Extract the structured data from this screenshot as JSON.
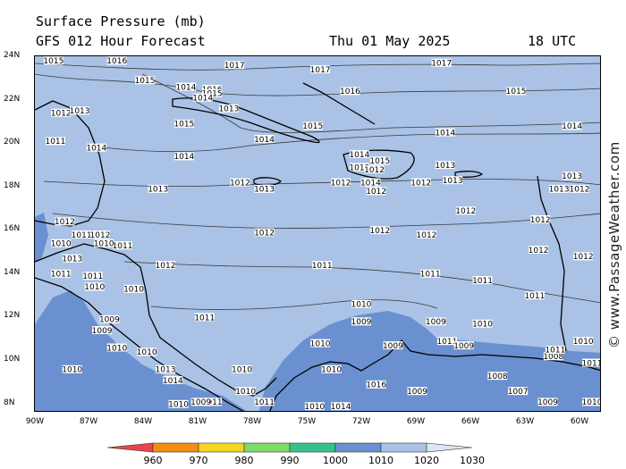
{
  "header": {
    "title": "Surface Pressure (mb)",
    "forecast": "GFS 012 Hour Forecast",
    "date": "Thu 01 May 2025",
    "time": "18 UTC"
  },
  "watermark": "© www.PassageWeather.com",
  "latitude_labels": [
    "24N",
    "22N",
    "20N",
    "18N",
    "16N",
    "14N",
    "12N",
    "10N",
    "8N"
  ],
  "longitude_labels": [
    "90W",
    "87W",
    "84W",
    "81W",
    "78W",
    "75W",
    "72W",
    "69W",
    "66W",
    "63W",
    "60W"
  ],
  "colorbar": {
    "ticks": [
      "960",
      "970",
      "980",
      "990",
      "1000",
      "1010",
      "1020",
      "1030"
    ],
    "colors": [
      "#e8464a",
      "#f28c12",
      "#f5d520",
      "#7ddc6a",
      "#37c28c",
      "#6a90d0",
      "#a9c2e6",
      "#dde6f5"
    ]
  },
  "colors": {
    "high_pressure": "#a9c2e6",
    "low_pressure": "#6a90d0",
    "land_outline": "#000000"
  },
  "isobar_labels": [
    {
      "text": "1015",
      "lon": -89.0,
      "lat": 23.8
    },
    {
      "text": "1016",
      "lon": -85.6,
      "lat": 23.8
    },
    {
      "text": "1017",
      "lon": -79.3,
      "lat": 23.6
    },
    {
      "text": "1017",
      "lon": -74.7,
      "lat": 23.4
    },
    {
      "text": "1017",
      "lon": -68.2,
      "lat": 23.7
    },
    {
      "text": "1015",
      "lon": -84.1,
      "lat": 22.9
    },
    {
      "text": "1014",
      "lon": -81.9,
      "lat": 22.6
    },
    {
      "text": "1016",
      "lon": -80.5,
      "lat": 22.5
    },
    {
      "text": "1015",
      "lon": -80.5,
      "lat": 22.3
    },
    {
      "text": "1014",
      "lon": -81.0,
      "lat": 22.1
    },
    {
      "text": "1016",
      "lon": -73.1,
      "lat": 22.4
    },
    {
      "text": "1015",
      "lon": -64.2,
      "lat": 22.4
    },
    {
      "text": "1013",
      "lon": -79.6,
      "lat": 21.6
    },
    {
      "text": "1012",
      "lon": -88.6,
      "lat": 21.4
    },
    {
      "text": "1013",
      "lon": -87.6,
      "lat": 21.5
    },
    {
      "text": "1015",
      "lon": -82.0,
      "lat": 20.9
    },
    {
      "text": "1015",
      "lon": -75.1,
      "lat": 20.8
    },
    {
      "text": "1014",
      "lon": -68.0,
      "lat": 20.5
    },
    {
      "text": "1014",
      "lon": -61.2,
      "lat": 20.8
    },
    {
      "text": "1011",
      "lon": -88.9,
      "lat": 20.1
    },
    {
      "text": "1014",
      "lon": -86.7,
      "lat": 19.8
    },
    {
      "text": "1014",
      "lon": -77.7,
      "lat": 20.2
    },
    {
      "text": "1014",
      "lon": -72.6,
      "lat": 19.5
    },
    {
      "text": "1015",
      "lon": -71.5,
      "lat": 19.2
    },
    {
      "text": "1014",
      "lon": -82.0,
      "lat": 19.4
    },
    {
      "text": "1013",
      "lon": -72.6,
      "lat": 18.9
    },
    {
      "text": "1012",
      "lon": -71.8,
      "lat": 18.8
    },
    {
      "text": "1013",
      "lon": -68.0,
      "lat": 19.0
    },
    {
      "text": "1012",
      "lon": -79.0,
      "lat": 18.2
    },
    {
      "text": "1013",
      "lon": -77.7,
      "lat": 17.9
    },
    {
      "text": "1013",
      "lon": -83.4,
      "lat": 17.9
    },
    {
      "text": "1012",
      "lon": -73.6,
      "lat": 18.2
    },
    {
      "text": "1014",
      "lon": -72.0,
      "lat": 18.2
    },
    {
      "text": "1012",
      "lon": -71.7,
      "lat": 17.8
    },
    {
      "text": "1012",
      "lon": -69.3,
      "lat": 18.2
    },
    {
      "text": "1013",
      "lon": -67.6,
      "lat": 18.3
    },
    {
      "text": "1013",
      "lon": -61.9,
      "lat": 17.9
    },
    {
      "text": "1012",
      "lon": -60.8,
      "lat": 17.9
    },
    {
      "text": "1013",
      "lon": -61.2,
      "lat": 18.5
    },
    {
      "text": "1012",
      "lon": -66.9,
      "lat": 16.9
    },
    {
      "text": "1012",
      "lon": -62.9,
      "lat": 16.5
    },
    {
      "text": "1012",
      "lon": -88.4,
      "lat": 16.4
    },
    {
      "text": "1012",
      "lon": -77.7,
      "lat": 15.9
    },
    {
      "text": "1012",
      "lon": -71.5,
      "lat": 16.0
    },
    {
      "text": "1012",
      "lon": -69.0,
      "lat": 15.8
    },
    {
      "text": "1012",
      "lon": -63.0,
      "lat": 15.1
    },
    {
      "text": "1012",
      "lon": -60.6,
      "lat": 14.8
    },
    {
      "text": "1011",
      "lon": -87.5,
      "lat": 15.8
    },
    {
      "text": "1012",
      "lon": -86.5,
      "lat": 15.8
    },
    {
      "text": "1011",
      "lon": -85.3,
      "lat": 15.3
    },
    {
      "text": "1010",
      "lon": -88.6,
      "lat": 15.4
    },
    {
      "text": "1010",
      "lon": -86.3,
      "lat": 15.4
    },
    {
      "text": "1013",
      "lon": -88.0,
      "lat": 14.7
    },
    {
      "text": "1012",
      "lon": -83.0,
      "lat": 14.4
    },
    {
      "text": "1011",
      "lon": -74.6,
      "lat": 14.4
    },
    {
      "text": "1011",
      "lon": -68.8,
      "lat": 14.0
    },
    {
      "text": "1011",
      "lon": -66.0,
      "lat": 13.7
    },
    {
      "text": "1011",
      "lon": -63.2,
      "lat": 13.0
    },
    {
      "text": "1011",
      "lon": -88.6,
      "lat": 14.0
    },
    {
      "text": "1011",
      "lon": -86.9,
      "lat": 13.9
    },
    {
      "text": "1010",
      "lon": -86.8,
      "lat": 13.4
    },
    {
      "text": "1010",
      "lon": -84.7,
      "lat": 13.3
    },
    {
      "text": "1010",
      "lon": -72.5,
      "lat": 12.6
    },
    {
      "text": "1011",
      "lon": -80.9,
      "lat": 12.0
    },
    {
      "text": "1009",
      "lon": -86.0,
      "lat": 11.9
    },
    {
      "text": "1009",
      "lon": -86.4,
      "lat": 11.4
    },
    {
      "text": "1010",
      "lon": -85.6,
      "lat": 10.6
    },
    {
      "text": "1010",
      "lon": -84.0,
      "lat": 10.4
    },
    {
      "text": "1010",
      "lon": -74.7,
      "lat": 10.8
    },
    {
      "text": "1009",
      "lon": -72.5,
      "lat": 11.8
    },
    {
      "text": "1009",
      "lon": -68.5,
      "lat": 11.8
    },
    {
      "text": "1010",
      "lon": -66.0,
      "lat": 11.7
    },
    {
      "text": "1010",
      "lon": -60.6,
      "lat": 10.9
    },
    {
      "text": "1011",
      "lon": -59.8,
      "lat": 9.9
    },
    {
      "text": "1010",
      "lon": -88.0,
      "lat": 9.6
    },
    {
      "text": "1013",
      "lon": -83.0,
      "lat": 9.6
    },
    {
      "text": "1014",
      "lon": -82.6,
      "lat": 9.1
    },
    {
      "text": "1010",
      "lon": -78.9,
      "lat": 9.6
    },
    {
      "text": "1010",
      "lon": -74.1,
      "lat": 9.6
    },
    {
      "text": "1009",
      "lon": -70.8,
      "lat": 10.7
    },
    {
      "text": "1011",
      "lon": -67.9,
      "lat": 10.9
    },
    {
      "text": "1009",
      "lon": -67.0,
      "lat": 10.7
    },
    {
      "text": "1008",
      "lon": -65.2,
      "lat": 9.3
    },
    {
      "text": "1007",
      "lon": -64.1,
      "lat": 8.6
    },
    {
      "text": "1009",
      "lon": -62.5,
      "lat": 8.1
    },
    {
      "text": "1010",
      "lon": -60.0,
      "lat": 8.1
    },
    {
      "text": "1008",
      "lon": -62.2,
      "lat": 10.2
    },
    {
      "text": "1011",
      "lon": -62.1,
      "lat": 10.5
    },
    {
      "text": "1009",
      "lon": -69.5,
      "lat": 8.6
    },
    {
      "text": "1011",
      "lon": -80.5,
      "lat": 8.1
    },
    {
      "text": "1010",
      "lon": -78.7,
      "lat": 8.6
    },
    {
      "text": "1011",
      "lon": -77.7,
      "lat": 8.1
    },
    {
      "text": "1009",
      "lon": -81.1,
      "lat": 8.1
    },
    {
      "text": "1010",
      "lon": -82.3,
      "lat": 8.0
    },
    {
      "text": "1010",
      "lon": -75.0,
      "lat": 7.9
    },
    {
      "text": "1014",
      "lon": -73.6,
      "lat": 7.9
    },
    {
      "text": "1016",
      "lon": -71.7,
      "lat": 8.9
    }
  ]
}
